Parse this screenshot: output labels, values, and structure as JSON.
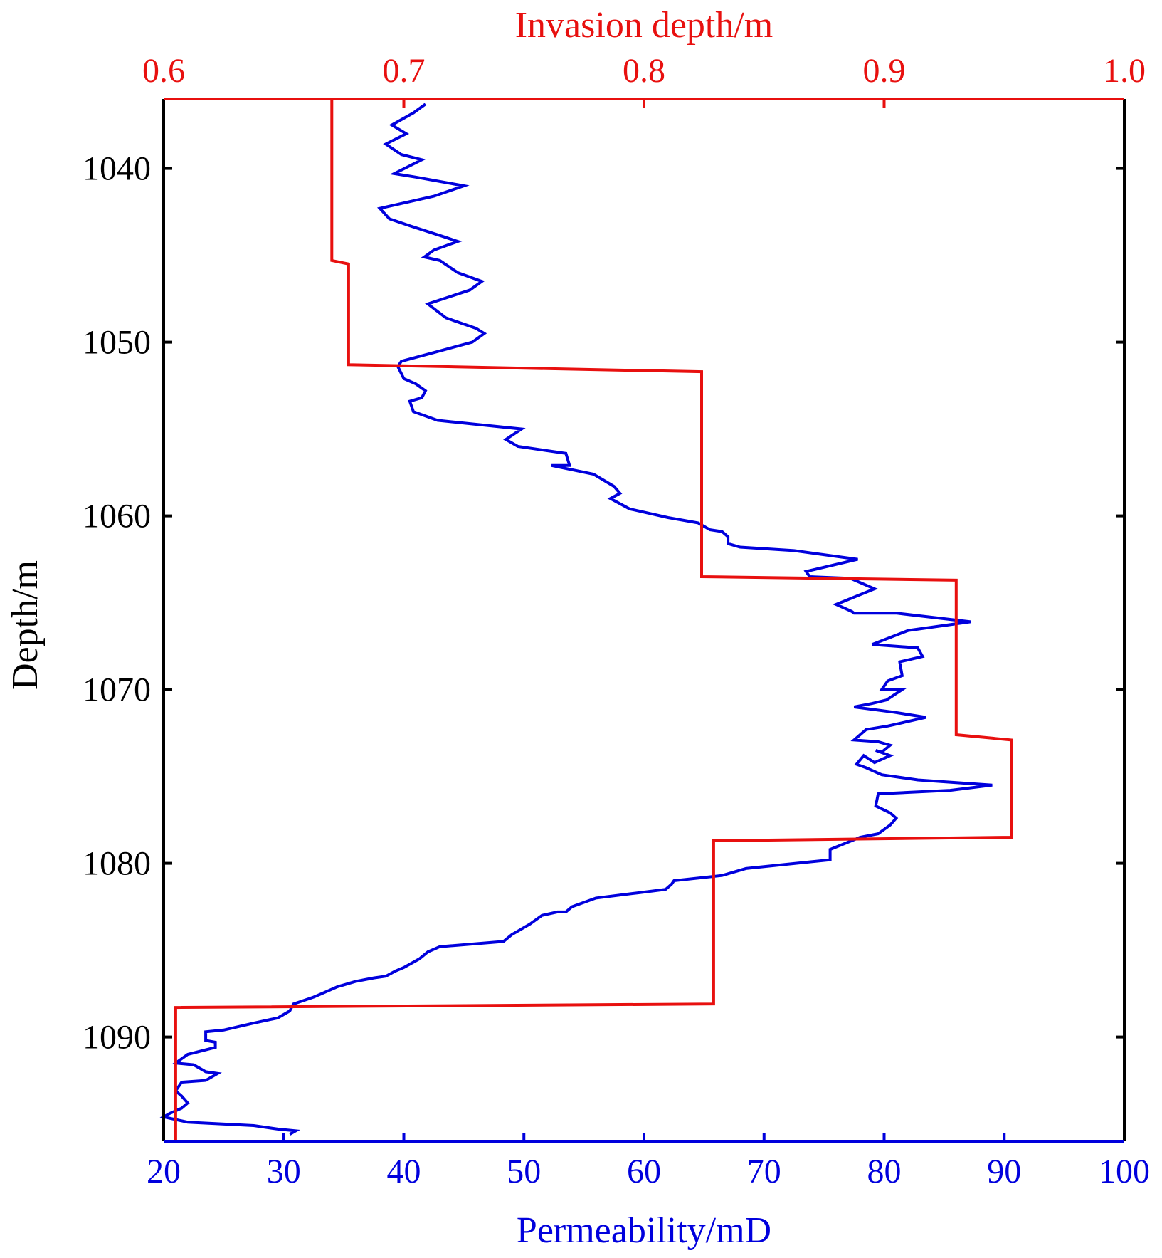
{
  "colors": {
    "permeability": "#0000dd",
    "invasion": "#e8100f",
    "frame": "#000000",
    "background": "#ffffff"
  },
  "chart_data": {
    "type": "line",
    "title": "",
    "grid": false,
    "axes": {
      "y": {
        "label": "Depth/m",
        "range": [
          1036,
          1096
        ],
        "reversed": true,
        "ticks": [
          1040,
          1050,
          1060,
          1070,
          1080,
          1090
        ],
        "tick_labels": [
          "1040",
          "1050",
          "1060",
          "1070",
          "1080",
          "1090"
        ]
      },
      "x_bottom": {
        "label": "Permeability/mD",
        "range": [
          20,
          100
        ],
        "ticks": [
          20,
          30,
          40,
          50,
          60,
          70,
          80,
          90,
          100
        ],
        "tick_labels": [
          "20",
          "30",
          "40",
          "50",
          "60",
          "70",
          "80",
          "90",
          "100"
        ]
      },
      "x_top": {
        "label": "Invasion depth/m",
        "range": [
          0.6,
          1.0
        ],
        "ticks": [
          0.6,
          0.7,
          0.8,
          0.9,
          1.0
        ],
        "tick_labels": [
          "0.6",
          "0.7",
          "0.8",
          "0.9",
          "1.0"
        ]
      }
    },
    "series": [
      {
        "axis": "x_bottom",
        "color": "#0000dd",
        "points": [
          [
            41.8,
            1036.3
          ],
          [
            40.8,
            1036.8
          ],
          [
            39.0,
            1037.5
          ],
          [
            40.2,
            1038.0
          ],
          [
            38.5,
            1038.6
          ],
          [
            39.8,
            1039.2
          ],
          [
            41.5,
            1039.5
          ],
          [
            39.2,
            1040.3
          ],
          [
            41.0,
            1040.5
          ],
          [
            45.0,
            1041.0
          ],
          [
            42.5,
            1041.6
          ],
          [
            38.0,
            1042.3
          ],
          [
            38.8,
            1042.9
          ],
          [
            40.5,
            1043.3
          ],
          [
            43.2,
            1043.9
          ],
          [
            44.5,
            1044.2
          ],
          [
            42.5,
            1044.7
          ],
          [
            41.7,
            1045.1
          ],
          [
            43.0,
            1045.3
          ],
          [
            44.5,
            1046.0
          ],
          [
            46.5,
            1046.5
          ],
          [
            45.5,
            1047.0
          ],
          [
            42.0,
            1047.8
          ],
          [
            43.5,
            1048.6
          ],
          [
            46.0,
            1049.2
          ],
          [
            46.7,
            1049.5
          ],
          [
            45.7,
            1050.0
          ],
          [
            42.5,
            1050.6
          ],
          [
            39.8,
            1051.1
          ],
          [
            39.5,
            1051.4
          ],
          [
            40.0,
            1052.1
          ],
          [
            41.0,
            1052.4
          ],
          [
            41.8,
            1052.8
          ],
          [
            41.5,
            1053.2
          ],
          [
            40.5,
            1053.4
          ],
          [
            40.8,
            1054.0
          ],
          [
            42.8,
            1054.5
          ],
          [
            49.8,
            1055.0
          ],
          [
            48.5,
            1055.6
          ],
          [
            49.5,
            1056.0
          ],
          [
            53.5,
            1056.4
          ],
          [
            53.8,
            1057.1
          ],
          [
            52.3,
            1057.1
          ],
          [
            55.8,
            1057.6
          ],
          [
            57.5,
            1058.3
          ],
          [
            58.0,
            1058.7
          ],
          [
            57.2,
            1059.0
          ],
          [
            58.8,
            1059.6
          ],
          [
            62.0,
            1060.1
          ],
          [
            64.5,
            1060.4
          ],
          [
            65.5,
            1060.8
          ],
          [
            66.5,
            1060.9
          ],
          [
            67.0,
            1061.2
          ],
          [
            67.0,
            1061.6
          ],
          [
            68.0,
            1061.8
          ],
          [
            72.5,
            1062.0
          ],
          [
            77.8,
            1062.5
          ],
          [
            73.5,
            1063.2
          ],
          [
            73.8,
            1063.5
          ],
          [
            77.2,
            1063.6
          ],
          [
            79.2,
            1064.2
          ],
          [
            76.0,
            1065.1
          ],
          [
            77.3,
            1065.5
          ],
          [
            77.5,
            1065.6
          ],
          [
            81.0,
            1065.6
          ],
          [
            87.2,
            1066.1
          ],
          [
            82.0,
            1066.6
          ],
          [
            79.0,
            1067.4
          ],
          [
            82.8,
            1067.6
          ],
          [
            83.2,
            1068.1
          ],
          [
            81.3,
            1068.4
          ],
          [
            81.5,
            1069.2
          ],
          [
            80.3,
            1069.5
          ],
          [
            79.8,
            1070.0
          ],
          [
            81.5,
            1070.0
          ],
          [
            80.2,
            1070.6
          ],
          [
            79.0,
            1070.8
          ],
          [
            77.5,
            1071.0
          ],
          [
            80.8,
            1071.3
          ],
          [
            83.5,
            1071.6
          ],
          [
            80.3,
            1072.1
          ],
          [
            78.5,
            1072.3
          ],
          [
            77.5,
            1072.9
          ],
          [
            79.5,
            1073.0
          ],
          [
            80.5,
            1073.2
          ],
          [
            79.8,
            1073.6
          ],
          [
            79.3,
            1073.5
          ],
          [
            80.5,
            1073.8
          ],
          [
            79.2,
            1074.2
          ],
          [
            78.3,
            1073.8
          ],
          [
            77.7,
            1074.3
          ],
          [
            78.5,
            1074.5
          ],
          [
            79.8,
            1074.9
          ],
          [
            82.8,
            1075.2
          ],
          [
            89.0,
            1075.5
          ],
          [
            85.5,
            1075.8
          ],
          [
            79.5,
            1076.0
          ],
          [
            79.3,
            1076.7
          ],
          [
            80.5,
            1077.1
          ],
          [
            81.0,
            1077.4
          ],
          [
            80.5,
            1077.8
          ],
          [
            79.5,
            1078.3
          ],
          [
            78.0,
            1078.5
          ],
          [
            75.5,
            1079.2
          ],
          [
            75.5,
            1079.8
          ],
          [
            68.5,
            1080.3
          ],
          [
            66.5,
            1080.7
          ],
          [
            62.5,
            1081.0
          ],
          [
            62.3,
            1081.2
          ],
          [
            61.8,
            1081.5
          ],
          [
            59.5,
            1081.7
          ],
          [
            56.0,
            1082.0
          ],
          [
            54.0,
            1082.5
          ],
          [
            53.5,
            1082.8
          ],
          [
            52.8,
            1082.8
          ],
          [
            51.5,
            1083.0
          ],
          [
            50.5,
            1083.5
          ],
          [
            49.5,
            1083.9
          ],
          [
            49.0,
            1084.1
          ],
          [
            48.3,
            1084.5
          ],
          [
            43.0,
            1084.8
          ],
          [
            42.0,
            1085.1
          ],
          [
            41.3,
            1085.5
          ],
          [
            40.0,
            1086.0
          ],
          [
            39.3,
            1086.2
          ],
          [
            38.5,
            1086.5
          ],
          [
            37.5,
            1086.6
          ],
          [
            36.0,
            1086.8
          ],
          [
            35.0,
            1087.0
          ],
          [
            34.5,
            1087.1
          ],
          [
            33.5,
            1087.4
          ],
          [
            32.5,
            1087.7
          ],
          [
            30.8,
            1088.1
          ],
          [
            30.5,
            1088.5
          ],
          [
            29.5,
            1088.9
          ],
          [
            27.5,
            1089.2
          ],
          [
            25.0,
            1089.6
          ],
          [
            23.5,
            1089.7
          ],
          [
            23.5,
            1090.2
          ],
          [
            24.3,
            1090.3
          ],
          [
            24.3,
            1090.6
          ],
          [
            22.0,
            1091.0
          ],
          [
            21.0,
            1091.5
          ],
          [
            22.5,
            1091.6
          ],
          [
            23.5,
            1092.0
          ],
          [
            24.5,
            1092.1
          ],
          [
            23.5,
            1092.5
          ],
          [
            21.5,
            1092.6
          ],
          [
            21.0,
            1093.1
          ],
          [
            21.5,
            1093.4
          ],
          [
            22.0,
            1093.8
          ],
          [
            21.5,
            1094.1
          ],
          [
            20.5,
            1094.4
          ],
          [
            20.0,
            1094.6
          ],
          [
            22.0,
            1094.9
          ],
          [
            27.5,
            1095.1
          ],
          [
            29.5,
            1095.3
          ],
          [
            31.0,
            1095.4
          ],
          [
            30.5,
            1095.6
          ]
        ]
      },
      {
        "axis": "x_top",
        "color": "#e8100f",
        "points": [
          [
            0.67,
            1036.0
          ],
          [
            0.67,
            1045.3
          ],
          [
            0.677,
            1045.5
          ],
          [
            0.677,
            1051.3
          ],
          [
            0.824,
            1051.7
          ],
          [
            0.824,
            1063.5
          ],
          [
            0.93,
            1063.7
          ],
          [
            0.93,
            1072.6
          ],
          [
            0.953,
            1072.9
          ],
          [
            0.953,
            1078.5
          ],
          [
            0.829,
            1078.7
          ],
          [
            0.829,
            1088.1
          ],
          [
            0.605,
            1088.3
          ],
          [
            0.605,
            1096.0
          ]
        ]
      }
    ]
  }
}
